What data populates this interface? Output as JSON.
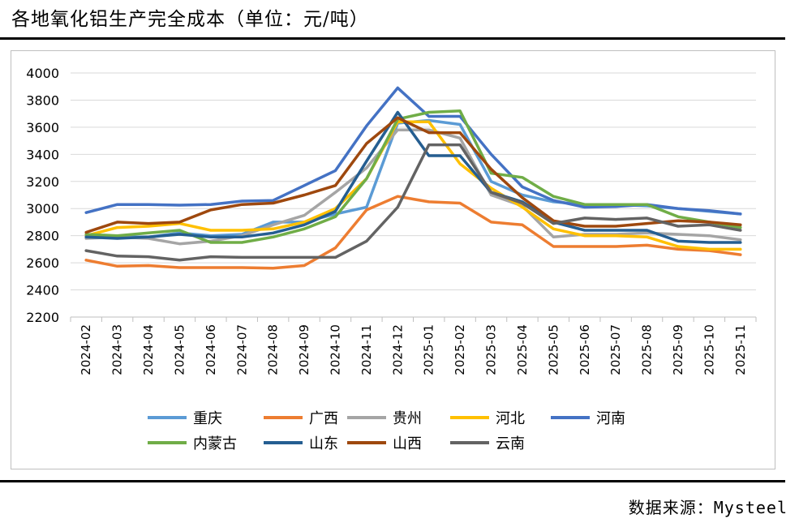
{
  "header": {
    "title": "各地氧化铝生产完全成本（单位：元/吨）"
  },
  "footer": {
    "source": "数据来源：Mysteel"
  },
  "chart_data": {
    "type": "line",
    "title": "各地氧化铝生产完全成本（单位：元/吨）",
    "xlabel": "",
    "ylabel": "",
    "ylim": [
      2200,
      4000
    ],
    "yticks": [
      2200,
      2400,
      2600,
      2800,
      3000,
      3200,
      3400,
      3600,
      3800,
      4000
    ],
    "grid": true,
    "legend_position": "bottom",
    "categories": [
      "2024-02",
      "2024-03",
      "2024-04",
      "2024-05",
      "2024-06",
      "2024-07",
      "2024-08",
      "2024-09",
      "2024-10",
      "2024-11",
      "2024-12",
      "2025-01",
      "2025-02",
      "2025-03",
      "2025-04",
      "2025-05",
      "2025-06",
      "2025-07",
      "2025-08",
      "2025-09",
      "2025-10",
      "2025-11"
    ],
    "series": [
      {
        "name": "重庆",
        "color": "#5b9bd5",
        "values": [
          2800,
          2790,
          2790,
          2820,
          2800,
          2810,
          2900,
          2900,
          2960,
          3010,
          3630,
          3650,
          3620,
          3200,
          3100,
          3050,
          3030,
          3030,
          3020,
          3000,
          2980,
          2960
        ]
      },
      {
        "name": "广西",
        "color": "#ed7d31",
        "values": [
          2620,
          2575,
          2580,
          2565,
          2565,
          2565,
          2560,
          2580,
          2710,
          2990,
          3090,
          3050,
          3040,
          2900,
          2880,
          2720,
          2720,
          2720,
          2730,
          2700,
          2690,
          2660
        ]
      },
      {
        "name": "贵州",
        "color": "#a5a5a5",
        "values": [
          2780,
          2790,
          2780,
          2740,
          2760,
          2800,
          2880,
          2950,
          3120,
          3300,
          3580,
          3580,
          3520,
          3100,
          3020,
          2790,
          2810,
          2810,
          2820,
          2810,
          2800,
          2770
        ]
      },
      {
        "name": "河北",
        "color": "#ffc000",
        "values": [
          2800,
          2860,
          2870,
          2890,
          2840,
          2840,
          2850,
          2900,
          3000,
          3220,
          3640,
          3640,
          3330,
          3150,
          3010,
          2850,
          2800,
          2800,
          2790,
          2720,
          2700,
          2700
        ]
      },
      {
        "name": "河南",
        "color": "#4472c4",
        "values": [
          2970,
          3030,
          3030,
          3025,
          3030,
          3055,
          3060,
          3170,
          3280,
          3610,
          3890,
          3680,
          3680,
          3400,
          3160,
          3060,
          3010,
          3015,
          3030,
          3000,
          2985,
          2960
        ]
      },
      {
        "name": "内蒙古",
        "color": "#70ad47",
        "values": [
          2810,
          2800,
          2820,
          2840,
          2750,
          2750,
          2790,
          2850,
          2940,
          3220,
          3660,
          3710,
          3720,
          3260,
          3230,
          3090,
          3030,
          3030,
          3030,
          2940,
          2900,
          2860
        ]
      },
      {
        "name": "山东",
        "color": "#255e91",
        "values": [
          2790,
          2780,
          2790,
          2810,
          2790,
          2790,
          2820,
          2880,
          2980,
          3350,
          3710,
          3390,
          3390,
          3120,
          3050,
          2900,
          2840,
          2840,
          2840,
          2760,
          2750,
          2750
        ]
      },
      {
        "name": "山西",
        "color": "#9e480e",
        "values": [
          2825,
          2900,
          2890,
          2900,
          2990,
          3030,
          3040,
          3100,
          3170,
          3480,
          3670,
          3560,
          3560,
          3290,
          3080,
          2910,
          2870,
          2870,
          2890,
          2910,
          2900,
          2880
        ]
      },
      {
        "name": "云南",
        "color": "#636363",
        "values": [
          2690,
          2650,
          2645,
          2620,
          2645,
          2640,
          2640,
          2640,
          2640,
          2760,
          3010,
          3470,
          3470,
          3120,
          3040,
          2890,
          2930,
          2920,
          2930,
          2870,
          2880,
          2840
        ]
      }
    ]
  }
}
